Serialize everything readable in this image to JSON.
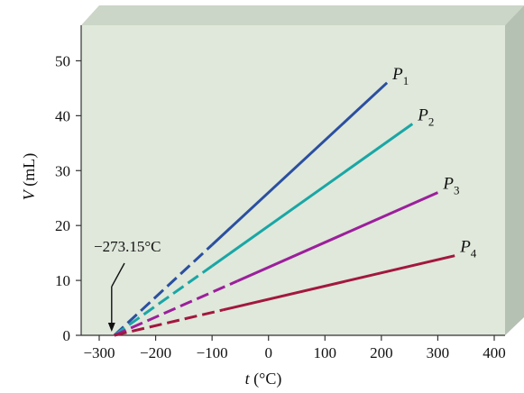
{
  "chart_data": {
    "type": "line",
    "xlabel_var": "t",
    "xlabel_unit": "(°C)",
    "ylabel_var": "V",
    "ylabel_unit": "(mL)",
    "xlim": [
      -300,
      400
    ],
    "ylim": [
      0,
      55
    ],
    "x_ticks": [
      -300,
      -200,
      -100,
      0,
      100,
      200,
      300,
      400
    ],
    "x_tick_labels": [
      "−300",
      "−200",
      "−100",
      "0",
      "100",
      "200",
      "300",
      "400"
    ],
    "y_ticks": [
      0,
      10,
      20,
      30,
      40,
      50
    ],
    "y_tick_labels": [
      "0",
      "10",
      "20",
      "30",
      "40",
      "50"
    ],
    "grid": false,
    "extrapolation_origin": -273.15,
    "annotation": {
      "text": "−273.15°C",
      "x": -273.15,
      "y": 0
    },
    "series": [
      {
        "name": "P",
        "subscript": "1",
        "color": "#2b4fa0",
        "x": [
          -273.15,
          210
        ],
        "y": [
          0,
          46
        ],
        "dashed_until_x": -100
      },
      {
        "name": "P",
        "subscript": "2",
        "color": "#1aa6a6",
        "x": [
          -273.15,
          255
        ],
        "y": [
          0,
          38.5
        ],
        "dashed_until_x": -100
      },
      {
        "name": "P",
        "subscript": "3",
        "color": "#9c1f9c",
        "x": [
          -273.15,
          300
        ],
        "y": [
          0,
          26
        ],
        "dashed_until_x": -55
      },
      {
        "name": "P",
        "subscript": "4",
        "color": "#a3173f",
        "x": [
          -273.15,
          330
        ],
        "y": [
          0,
          14.5
        ],
        "dashed_until_x": -80
      }
    ]
  }
}
